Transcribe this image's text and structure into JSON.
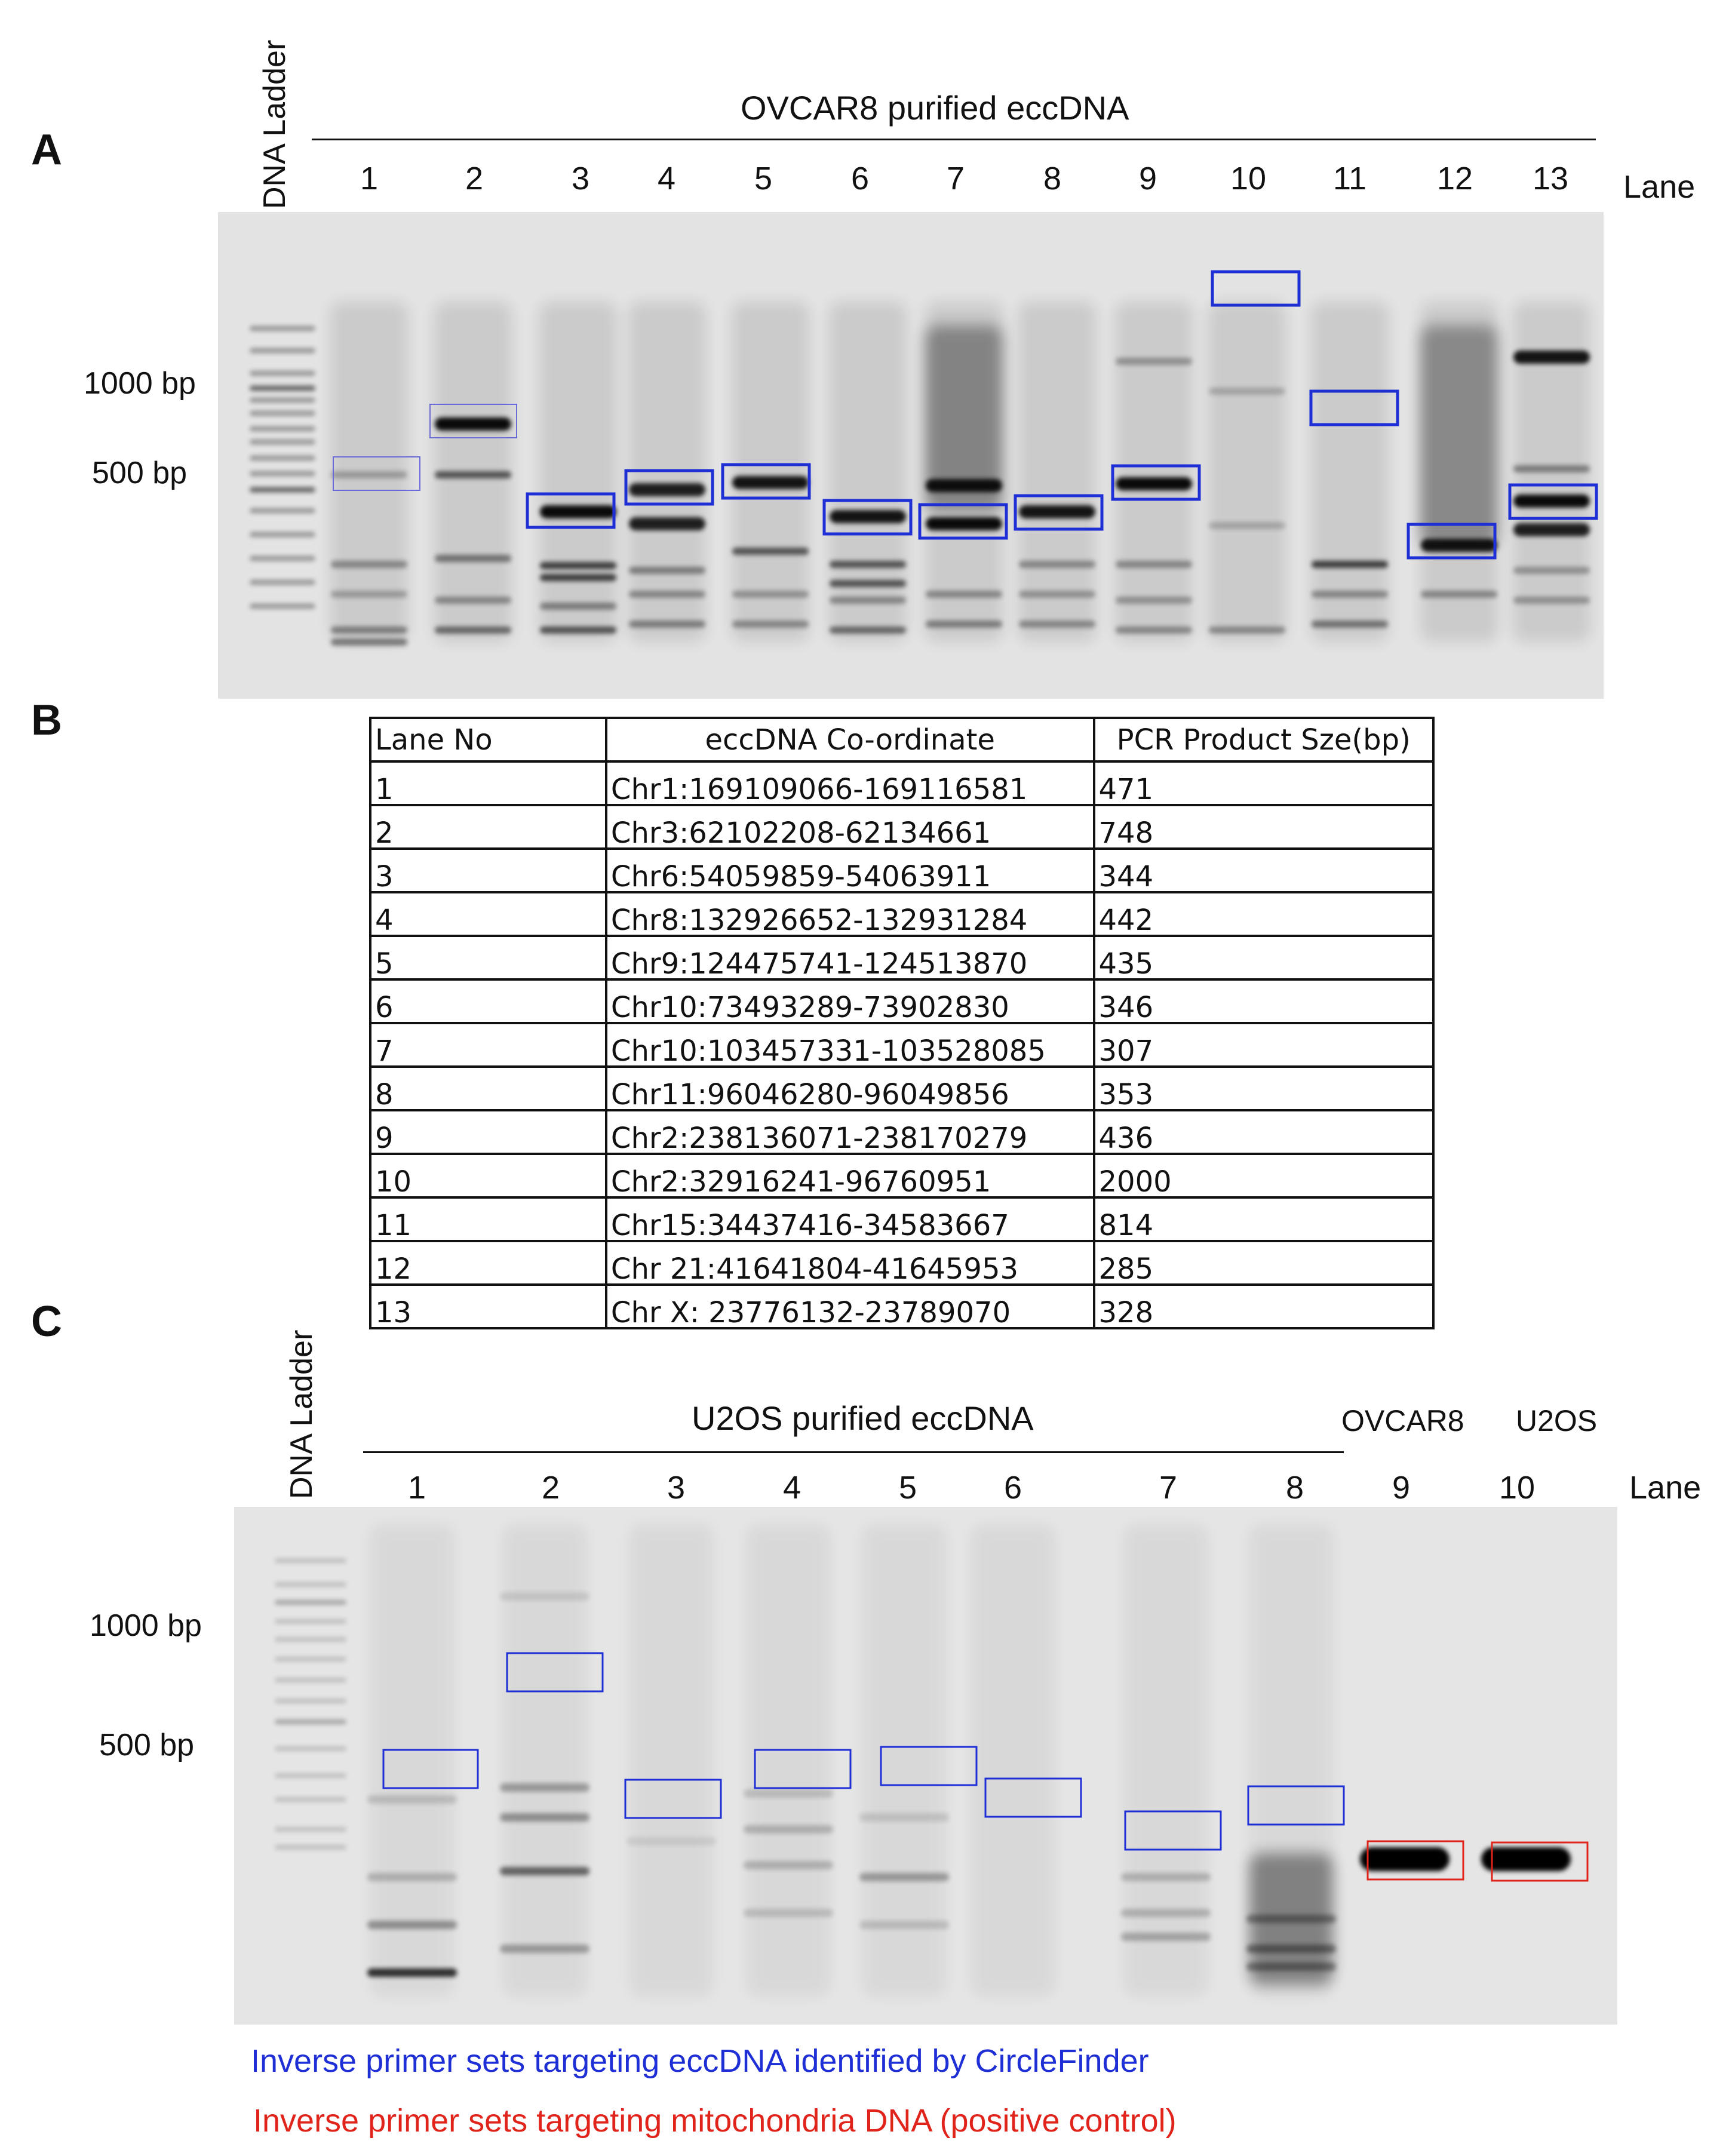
{
  "panelA": {
    "letter": "A",
    "ladder_label": "DNA Ladder",
    "title": "OVCAR8 purified eccDNA",
    "lane_word": "Lane",
    "lanes": [
      "1",
      "2",
      "3",
      "4",
      "5",
      "6",
      "7",
      "8",
      "9",
      "10",
      "11",
      "12",
      "13"
    ],
    "bp_labels": [
      "1000 bp",
      "500 bp"
    ]
  },
  "panelB": {
    "letter": "B",
    "headers": [
      "Lane No",
      "eccDNA Co-ordinate",
      "PCR Product Sze(bp)"
    ],
    "rows": [
      [
        "1",
        "Chr1:169109066-169116581",
        "471"
      ],
      [
        "2",
        "Chr3:62102208-62134661",
        "748"
      ],
      [
        "3",
        "Chr6:54059859-54063911",
        "344"
      ],
      [
        "4",
        "Chr8:132926652-132931284",
        "442"
      ],
      [
        "5",
        "Chr9:124475741-124513870",
        "435"
      ],
      [
        "6",
        "Chr10:73493289-73902830",
        "346"
      ],
      [
        "7",
        "Chr10:103457331-103528085",
        "307"
      ],
      [
        "8",
        "Chr11:96046280-96049856",
        "353"
      ],
      [
        "9",
        "Chr2:238136071-238170279",
        "436"
      ],
      [
        "10",
        "Chr2:32916241-96760951",
        "2000"
      ],
      [
        "11",
        "Chr15:34437416-34583667",
        "814"
      ],
      [
        "12",
        "Chr 21:41641804-41645953",
        "285"
      ],
      [
        "13",
        "Chr X: 23776132-23789070",
        "328"
      ]
    ]
  },
  "panelC": {
    "letter": "C",
    "ladder_label": "DNA Ladder",
    "title": "U2OS purified eccDNA",
    "control_labels": [
      "OVCAR8",
      "U2OS"
    ],
    "lane_word": "Lane",
    "lanes": [
      "1",
      "2",
      "3",
      "4",
      "5",
      "6",
      "7",
      "8",
      "9",
      "10"
    ],
    "bp_labels": [
      "1000 bp",
      "500 bp"
    ]
  },
  "legend": {
    "blue_text": "Inverse primer sets targeting eccDNA identified by CircleFinder",
    "red_text": "Inverse primer sets targeting mitochondria DNA (positive control)",
    "blue_color": "#1f2fd6",
    "red_color": "#e0241b"
  }
}
